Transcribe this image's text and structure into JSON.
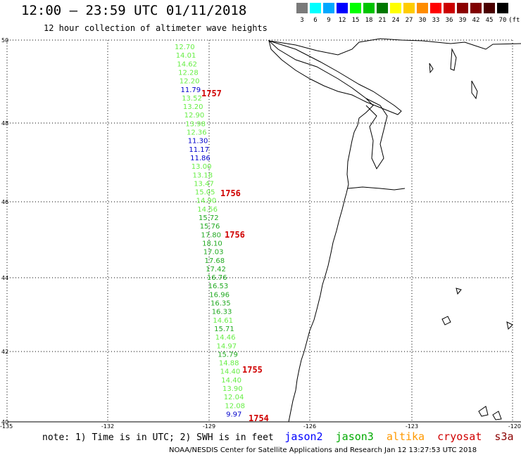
{
  "title": "12:00 – 23:59 UTC 01/11/2018",
  "subtitle": "12 hour collection of altimeter wave heights",
  "colorbar": {
    "units": "(ft)",
    "labels": [
      "3",
      "6",
      "9",
      "12",
      "15",
      "18",
      "21",
      "24",
      "27",
      "30",
      "33",
      "36",
      "39",
      "42",
      "45",
      "70"
    ],
    "colors": [
      "#7a7a7a",
      "#00ffff",
      "#00a8ff",
      "#0000ff",
      "#00ff00",
      "#00c400",
      "#007800",
      "#ffff00",
      "#ffcc00",
      "#ff8c00",
      "#ff0000",
      "#cc0000",
      "#8b0000",
      "#800000",
      "#4b0000",
      "#000000"
    ]
  },
  "axes": {
    "lat_labels": [
      "50",
      "48",
      "46",
      "44",
      "42",
      "40"
    ],
    "lon_labels": [
      "-135",
      "-132",
      "-129",
      "-126",
      "-123",
      "-120"
    ]
  },
  "track_times": [
    "1757",
    "1756",
    "1756",
    "1755",
    "1754"
  ],
  "wave_heights": {
    "values": [
      "12.70",
      "14.01",
      "14.62",
      "12.28",
      "12.20",
      "11.79",
      "13.52",
      "13.20",
      "12.90",
      "13.98",
      "12.36",
      "11.30",
      "11.17",
      "11.86",
      "13.00",
      "13.18",
      "13.47",
      "15.05",
      "14.90",
      "14.56",
      "15.72",
      "15.76",
      "17.80",
      "18.10",
      "17.03",
      "17.68",
      "17.42",
      "16.76",
      "16.53",
      "16.96",
      "16.35",
      "16.33",
      "14.61",
      "15.71",
      "14.46",
      "14.97",
      "15.79",
      "14.88",
      "14.40",
      "14.40",
      "13.90",
      "12.04",
      "12.08",
      "9.97"
    ],
    "colors": [
      "#66ee44",
      "#66ee44",
      "#66ee44",
      "#66ee44",
      "#66ee44",
      "#0000cc",
      "#66ee44",
      "#66ee44",
      "#66ee44",
      "#66ee44",
      "#66ee44",
      "#0000cc",
      "#0000cc",
      "#0000cc",
      "#66ee44",
      "#66ee44",
      "#66ee44",
      "#66ee44",
      "#66ee44",
      "#66ee44",
      "#22aa22",
      "#22aa22",
      "#22aa22",
      "#22aa22",
      "#22aa22",
      "#22aa22",
      "#22aa22",
      "#22aa22",
      "#22aa22",
      "#22aa22",
      "#22aa22",
      "#22aa22",
      "#66ee44",
      "#22aa22",
      "#66ee44",
      "#66ee44",
      "#22aa22",
      "#66ee44",
      "#66ee44",
      "#66ee44",
      "#66ee44",
      "#66ee44",
      "#66ee44",
      "#0000cc"
    ]
  },
  "note": "note: 1) Time is in UTC; 2) SWH is in feet",
  "satellites": [
    {
      "name": "jason2",
      "color": "#0000ff"
    },
    {
      "name": "jason3",
      "color": "#00aa00"
    },
    {
      "name": "altika",
      "color": "#ff9900"
    },
    {
      "name": "cryosat",
      "color": "#d00000"
    },
    {
      "name": "s3a",
      "color": "#8b0000"
    }
  ],
  "footer": "NOAA/NESDIS Center for Satellite Applications and Research    Jan 12 13:27:53 UTC 2018"
}
